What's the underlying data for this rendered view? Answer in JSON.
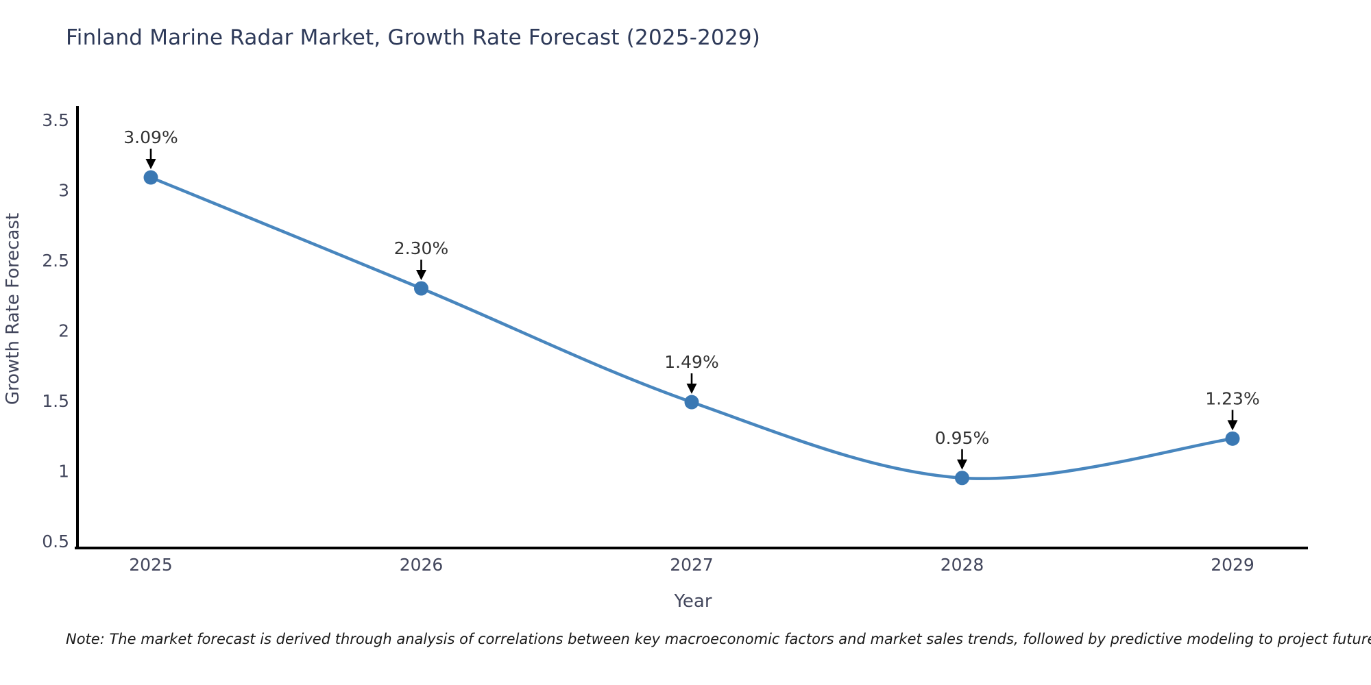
{
  "title": "Finland Marine Radar Market, Growth Rate Forecast (2025-2029)",
  "note": "Note: The market forecast is derived through analysis of correlations between key macroeconomic factors and market sales trends, followed by predictive modeling to project future sales",
  "colors": {
    "line": "#4886be",
    "marker": "#3a78b3",
    "axis": "#000000",
    "tick_text": "#42465c",
    "title_text": "#2e3a59",
    "annotation_text": "#333333",
    "arrow": "#000000",
    "background": "#ffffff"
  },
  "chart_data": {
    "type": "line",
    "title": "Finland Marine Radar Market, Growth Rate Forecast (2025-2029)",
    "xlabel": "Year",
    "ylabel": "Growth Rate Forecast",
    "categories": [
      "2025",
      "2026",
      "2027",
      "2028",
      "2029"
    ],
    "values": [
      3.09,
      2.3,
      1.49,
      0.95,
      1.23
    ],
    "point_labels": [
      "3.09%",
      "2.30%",
      "1.49%",
      "0.95%",
      "1.23%"
    ],
    "ylim": [
      0.5,
      3.5
    ],
    "yticks": [
      3.5,
      3,
      2.5,
      2,
      1.5,
      1,
      0.5
    ],
    "ytick_labels": [
      "3.5",
      "3",
      "2.5",
      "2",
      "1.5",
      "1",
      "0.5"
    ],
    "grid": false,
    "legend": "none",
    "line_smooth": true,
    "annotations": "value labels above each point with downward arrows"
  }
}
